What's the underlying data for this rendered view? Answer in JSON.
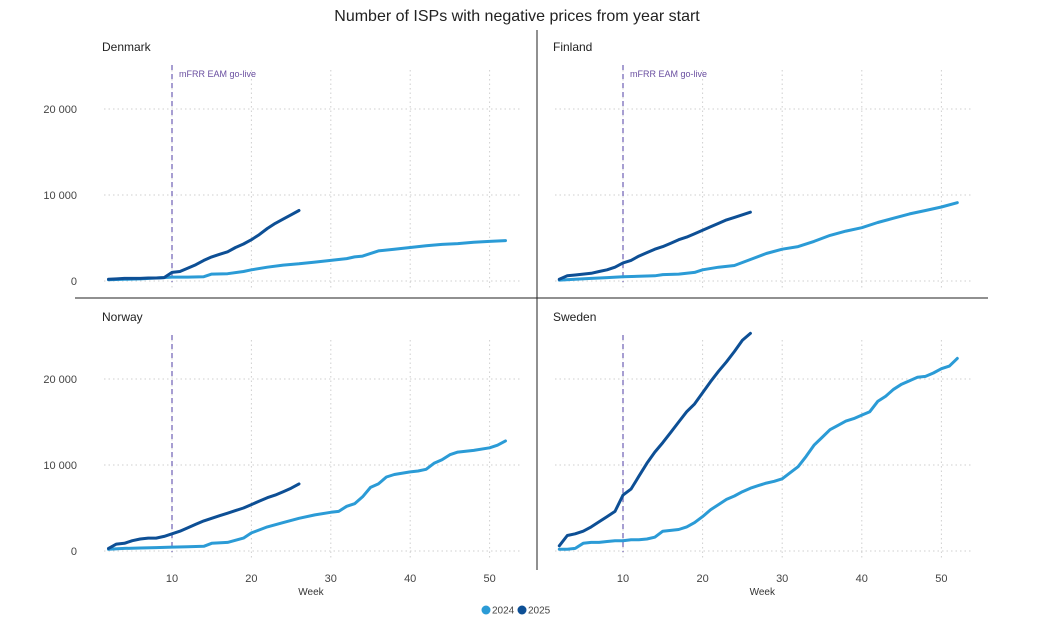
{
  "title": "Number of ISPs with negative prices from year start",
  "colors": {
    "s2024": "#2b9bd6",
    "s2025": "#0d4f95",
    "annotation": "#8a7fc4",
    "grid": "#cfcfcf",
    "divider": "#222222"
  },
  "legend": [
    {
      "name": "2024",
      "color": "#2b9bd6"
    },
    {
      "name": "2025",
      "color": "#0d4f95"
    }
  ],
  "chart_data": {
    "type": "line",
    "title": "Number of ISPs with negative prices from year start",
    "xlabel": "Week",
    "ylabel": "",
    "xlim": [
      1,
      53
    ],
    "ylim": [
      -1000,
      26000
    ],
    "x_ticks": [
      "10",
      "20",
      "30",
      "40",
      "50"
    ],
    "y_ticks": [
      "0",
      "10 000",
      "20 000"
    ],
    "grid": true,
    "legend_position": "bottom-center",
    "annotation": {
      "x": 10,
      "label": "mFRR EAM go-live"
    },
    "panels": [
      {
        "name": "Denmark",
        "show_annotation_label": true,
        "series": [
          {
            "name": "2024",
            "x": [
              2,
              4,
              6,
              8,
              10,
              12,
              14,
              15,
              17,
              19,
              20,
              22,
              24,
              26,
              28,
              30,
              31,
              32,
              33,
              34,
              36,
              38,
              40,
              42,
              44,
              46,
              48,
              50,
              52
            ],
            "y": [
              150,
              200,
              250,
              350,
              450,
              450,
              500,
              800,
              850,
              1100,
              1300,
              1600,
              1850,
              2000,
              2200,
              2400,
              2500,
              2600,
              2800,
              2900,
              3500,
              3700,
              3900,
              4100,
              4250,
              4350,
              4500,
              4600,
              4700
            ]
          },
          {
            "name": "2025",
            "x": [
              2,
              3,
              4,
              5,
              6,
              7,
              8,
              9,
              10,
              11,
              12,
              13,
              14,
              15,
              16,
              17,
              18,
              19,
              20,
              21,
              22,
              23,
              24,
              25,
              26
            ],
            "y": [
              200,
              250,
              300,
              300,
              300,
              350,
              350,
              400,
              1000,
              1100,
              1500,
              1900,
              2400,
              2800,
              3100,
              3400,
              3900,
              4300,
              4800,
              5400,
              6100,
              6700,
              7200,
              7700,
              8200
            ]
          }
        ]
      },
      {
        "name": "Finland",
        "show_annotation_label": true,
        "series": [
          {
            "name": "2024",
            "x": [
              2,
              4,
              6,
              8,
              10,
              12,
              14,
              15,
              17,
              19,
              20,
              22,
              24,
              26,
              28,
              30,
              32,
              34,
              36,
              38,
              40,
              42,
              44,
              46,
              48,
              50,
              52
            ],
            "y": [
              100,
              200,
              300,
              400,
              500,
              550,
              600,
              750,
              800,
              1000,
              1300,
              1600,
              1800,
              2500,
              3200,
              3700,
              4000,
              4600,
              5300,
              5800,
              6200,
              6800,
              7300,
              7800,
              8200,
              8600,
              9100
            ]
          },
          {
            "name": "2025",
            "x": [
              2,
              3,
              4,
              5,
              6,
              7,
              8,
              9,
              10,
              11,
              12,
              13,
              14,
              15,
              16,
              17,
              18,
              19,
              20,
              21,
              22,
              23,
              24,
              25,
              26
            ],
            "y": [
              200,
              600,
              700,
              800,
              900,
              1100,
              1300,
              1600,
              2100,
              2400,
              2900,
              3300,
              3700,
              4000,
              4400,
              4800,
              5100,
              5500,
              5900,
              6300,
              6700,
              7100,
              7400,
              7700,
              8000
            ]
          }
        ]
      },
      {
        "name": "Norway",
        "show_annotation_label": false,
        "series": [
          {
            "name": "2024",
            "x": [
              2,
              4,
              6,
              8,
              10,
              12,
              14,
              15,
              17,
              19,
              20,
              22,
              24,
              26,
              28,
              30,
              31,
              32,
              33,
              34,
              35,
              36,
              37,
              38,
              40,
              41,
              42,
              43,
              44,
              45,
              46,
              48,
              50,
              51,
              52
            ],
            "y": [
              200,
              300,
              350,
              400,
              450,
              500,
              550,
              900,
              1000,
              1500,
              2100,
              2800,
              3300,
              3800,
              4200,
              4500,
              4600,
              5200,
              5500,
              6300,
              7400,
              7800,
              8600,
              8900,
              9200,
              9300,
              9500,
              10200,
              10600,
              11200,
              11500,
              11700,
              12000,
              12300,
              12800
            ]
          },
          {
            "name": "2025",
            "x": [
              2,
              3,
              4,
              5,
              6,
              7,
              8,
              9,
              10,
              11,
              12,
              13,
              14,
              15,
              16,
              17,
              18,
              19,
              20,
              21,
              22,
              23,
              24,
              25,
              26
            ],
            "y": [
              300,
              800,
              900,
              1200,
              1400,
              1500,
              1500,
              1700,
              2000,
              2300,
              2700,
              3100,
              3500,
              3800,
              4100,
              4400,
              4700,
              5000,
              5400,
              5800,
              6200,
              6500,
              6900,
              7300,
              7800
            ]
          }
        ]
      },
      {
        "name": "Sweden",
        "show_annotation_label": false,
        "series": [
          {
            "name": "2024",
            "x": [
              2,
              3,
              4,
              5,
              6,
              7,
              8,
              9,
              10,
              11,
              12,
              13,
              14,
              15,
              16,
              17,
              18,
              19,
              20,
              21,
              22,
              23,
              24,
              25,
              26,
              27,
              28,
              29,
              30,
              31,
              32,
              33,
              34,
              35,
              36,
              37,
              38,
              39,
              40,
              41,
              42,
              43,
              44,
              45,
              46,
              47,
              48,
              49,
              50,
              51,
              52
            ],
            "y": [
              200,
              200,
              300,
              900,
              1000,
              1000,
              1100,
              1200,
              1200,
              1300,
              1300,
              1400,
              1600,
              2300,
              2400,
              2500,
              2800,
              3300,
              4000,
              4800,
              5400,
              6000,
              6400,
              6900,
              7300,
              7600,
              7900,
              8100,
              8400,
              9100,
              9800,
              11000,
              12300,
              13200,
              14100,
              14600,
              15100,
              15400,
              15800,
              16200,
              17400,
              18000,
              18800,
              19400,
              19800,
              20200,
              20300,
              20700,
              21200,
              21500,
              22400
            ]
          },
          {
            "name": "2025",
            "x": [
              2,
              3,
              4,
              5,
              6,
              7,
              8,
              9,
              10,
              11,
              12,
              13,
              14,
              15,
              16,
              17,
              18,
              19,
              20,
              21,
              22,
              23,
              24,
              25,
              26
            ],
            "y": [
              600,
              1800,
              2000,
              2300,
              2800,
              3400,
              4000,
              4600,
              6500,
              7200,
              8700,
              10200,
              11500,
              12600,
              13800,
              15000,
              16200,
              17100,
              18400,
              19700,
              20900,
              22000,
              23200,
              24500,
              25300
            ]
          }
        ]
      }
    ]
  }
}
